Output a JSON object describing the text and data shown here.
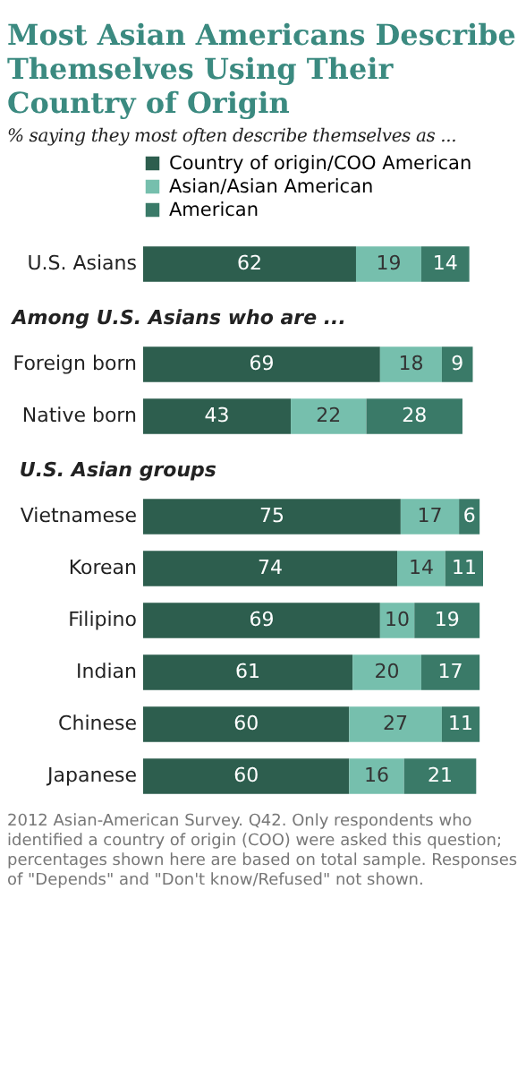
{
  "chart_data": [
    {
      "type": "bar",
      "orientation": "horizontal",
      "stacked": true,
      "data_labels": true,
      "legend": "top",
      "title": "Most Asian Americans Describe Themselves Using Their Country of Origin",
      "subtitle": "% saying they most often describe themselves as ...",
      "categories": [
        "U.S. Asians"
      ],
      "series": [
        {
          "name": "Country of origin/COO American",
          "color": "#2d5e4e",
          "values": [
            62
          ]
        },
        {
          "name": "Asian/Asian American",
          "color": "#76bfad",
          "values": [
            19
          ]
        },
        {
          "name": "American",
          "color": "#3a7a68",
          "values": [
            14
          ]
        }
      ]
    },
    {
      "type": "bar",
      "orientation": "horizontal",
      "stacked": true,
      "data_labels": true,
      "title": "Among U.S. Asians who are ...",
      "categories": [
        "Foreign born",
        "Native born"
      ],
      "series": [
        {
          "color": "#2d5e4e",
          "values": [
            69,
            43
          ]
        },
        {
          "color": "#76bfad",
          "values": [
            18,
            22
          ]
        },
        {
          "color": "#3a7a68",
          "values": [
            9,
            28
          ]
        }
      ]
    },
    {
      "type": "bar",
      "orientation": "horizontal",
      "stacked": true,
      "data_labels": true,
      "title": "U.S. Asian groups",
      "categories": [
        "Vietnamese",
        "Korean",
        "Filipino",
        "Indian",
        "Chinese",
        "Japanese"
      ],
      "series": [
        {
          "color": "#2d5e4e",
          "values": [
            75,
            74,
            69,
            61,
            60,
            60
          ]
        },
        {
          "color": "#76bfad",
          "values": [
            17,
            14,
            10,
            20,
            27,
            16
          ]
        },
        {
          "color": "#3a7a68",
          "values": [
            6,
            11,
            19,
            17,
            11,
            21
          ]
        }
      ],
      "annotations": [
        "2012 Asian-American Survey. Q42. Only respondents who identified a country of origin (COO) were asked this question; percentages shown here are based on total sample. Responses of \"Depends\" and \"Don't know/Refused\" not shown."
      ]
    }
  ]
}
